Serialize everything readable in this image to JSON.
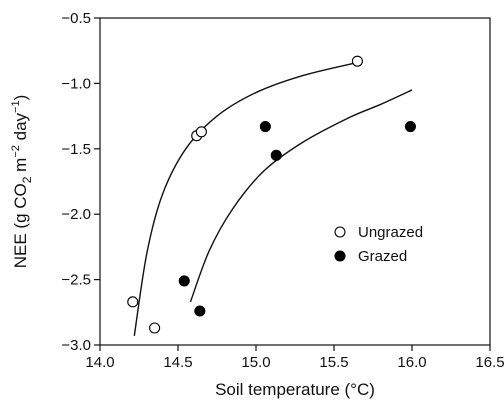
{
  "chart_data": {
    "type": "scatter",
    "title": "",
    "xlabel": "Soil temperature (°C)",
    "ylabel": {
      "prefix": "NEE (g CO",
      "co2_sub": "2",
      "m": " m",
      "m_exp": "−2",
      "day": " day",
      "day_exp": "−1",
      "suffix": ")"
    },
    "xlim": [
      14.0,
      16.5
    ],
    "ylim": [
      -3.0,
      -0.5
    ],
    "xticks": [
      "14.0",
      "14.5",
      "15.0",
      "15.5",
      "16.0",
      "16.5"
    ],
    "yticks": [
      "−3.0",
      "−2.5",
      "−2.0",
      "−1.5",
      "−1.0",
      "−0.5"
    ],
    "legend_position": "center-right",
    "grid": false,
    "series": [
      {
        "name": "Ungrazed",
        "marker": "open-circle",
        "points": [
          {
            "x": 14.21,
            "y": -2.67
          },
          {
            "x": 14.35,
            "y": -2.87
          },
          {
            "x": 14.62,
            "y": -1.4
          },
          {
            "x": 14.65,
            "y": -1.37
          },
          {
            "x": 15.65,
            "y": -0.83
          }
        ],
        "fit_curve": [
          {
            "x": 14.22,
            "y": -2.93
          },
          {
            "x": 14.3,
            "y": -2.3
          },
          {
            "x": 14.4,
            "y": -1.85
          },
          {
            "x": 14.55,
            "y": -1.5
          },
          {
            "x": 14.75,
            "y": -1.25
          },
          {
            "x": 15.0,
            "y": -1.07
          },
          {
            "x": 15.3,
            "y": -0.94
          },
          {
            "x": 15.65,
            "y": -0.84
          }
        ]
      },
      {
        "name": "Grazed",
        "marker": "filled-circle",
        "points": [
          {
            "x": 14.54,
            "y": -2.51
          },
          {
            "x": 14.64,
            "y": -2.74
          },
          {
            "x": 15.06,
            "y": -1.33
          },
          {
            "x": 15.13,
            "y": -1.55
          },
          {
            "x": 15.99,
            "y": -1.33
          }
        ],
        "fit_curve": [
          {
            "x": 14.58,
            "y": -2.67
          },
          {
            "x": 14.7,
            "y": -2.28
          },
          {
            "x": 14.85,
            "y": -1.96
          },
          {
            "x": 15.05,
            "y": -1.67
          },
          {
            "x": 15.3,
            "y": -1.45
          },
          {
            "x": 15.6,
            "y": -1.26
          },
          {
            "x": 15.8,
            "y": -1.16
          },
          {
            "x": 16.0,
            "y": -1.05
          }
        ]
      }
    ]
  }
}
